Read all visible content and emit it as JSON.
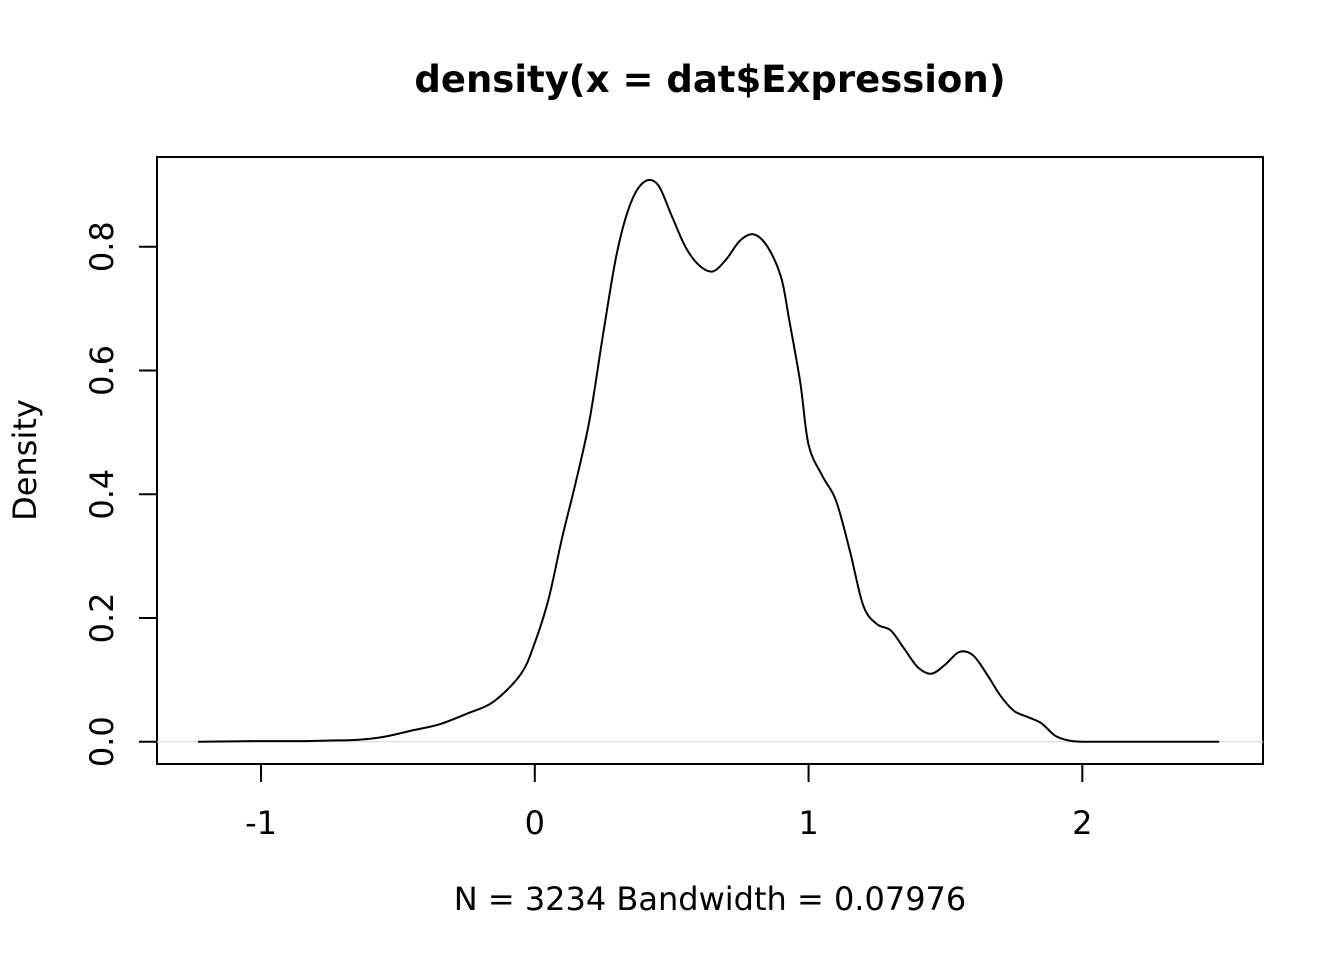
{
  "chart_data": {
    "type": "line",
    "title": "density(x = dat$Expression)",
    "xlabel": "N = 3234   Bandwidth = 0.07976",
    "ylabel": "Density",
    "xlim": [
      -1.38,
      2.66
    ],
    "ylim": [
      -0.036,
      0.945
    ],
    "x_ticks": [
      -1,
      0,
      1,
      2
    ],
    "x_tick_labels": [
      "-1",
      "0",
      "1",
      "2"
    ],
    "y_ticks": [
      0.0,
      0.2,
      0.4,
      0.6,
      0.8
    ],
    "y_tick_labels": [
      "0.0",
      "0.2",
      "0.4",
      "0.6",
      "0.8"
    ],
    "grid": false,
    "zero_line": true,
    "series": [
      {
        "x": [
          -1.23,
          -1.0,
          -0.85,
          -0.75,
          -0.65,
          -0.55,
          -0.45,
          -0.35,
          -0.25,
          -0.15,
          -0.05,
          0.0,
          0.05,
          0.1,
          0.15,
          0.2,
          0.25,
          0.3,
          0.35,
          0.4,
          0.45,
          0.5,
          0.55,
          0.6,
          0.65,
          0.7,
          0.75,
          0.8,
          0.85,
          0.9,
          0.93,
          0.97,
          1.0,
          1.05,
          1.1,
          1.15,
          1.2,
          1.25,
          1.3,
          1.35,
          1.4,
          1.45,
          1.5,
          1.55,
          1.6,
          1.65,
          1.7,
          1.75,
          1.8,
          1.85,
          1.9,
          1.95,
          2.0,
          2.05,
          2.1,
          2.2,
          2.3,
          2.4,
          2.5
        ],
        "y": [
          0.0,
          0.001,
          0.001,
          0.002,
          0.003,
          0.008,
          0.018,
          0.028,
          0.045,
          0.065,
          0.11,
          0.16,
          0.23,
          0.33,
          0.42,
          0.52,
          0.66,
          0.79,
          0.87,
          0.905,
          0.9,
          0.85,
          0.8,
          0.77,
          0.76,
          0.78,
          0.81,
          0.82,
          0.8,
          0.75,
          0.68,
          0.58,
          0.48,
          0.43,
          0.39,
          0.31,
          0.22,
          0.19,
          0.18,
          0.15,
          0.12,
          0.11,
          0.125,
          0.145,
          0.14,
          0.11,
          0.075,
          0.05,
          0.04,
          0.03,
          0.01,
          0.002,
          0.0,
          0.0,
          0.0,
          0.0,
          0.0,
          0.0,
          0.0
        ]
      }
    ]
  }
}
